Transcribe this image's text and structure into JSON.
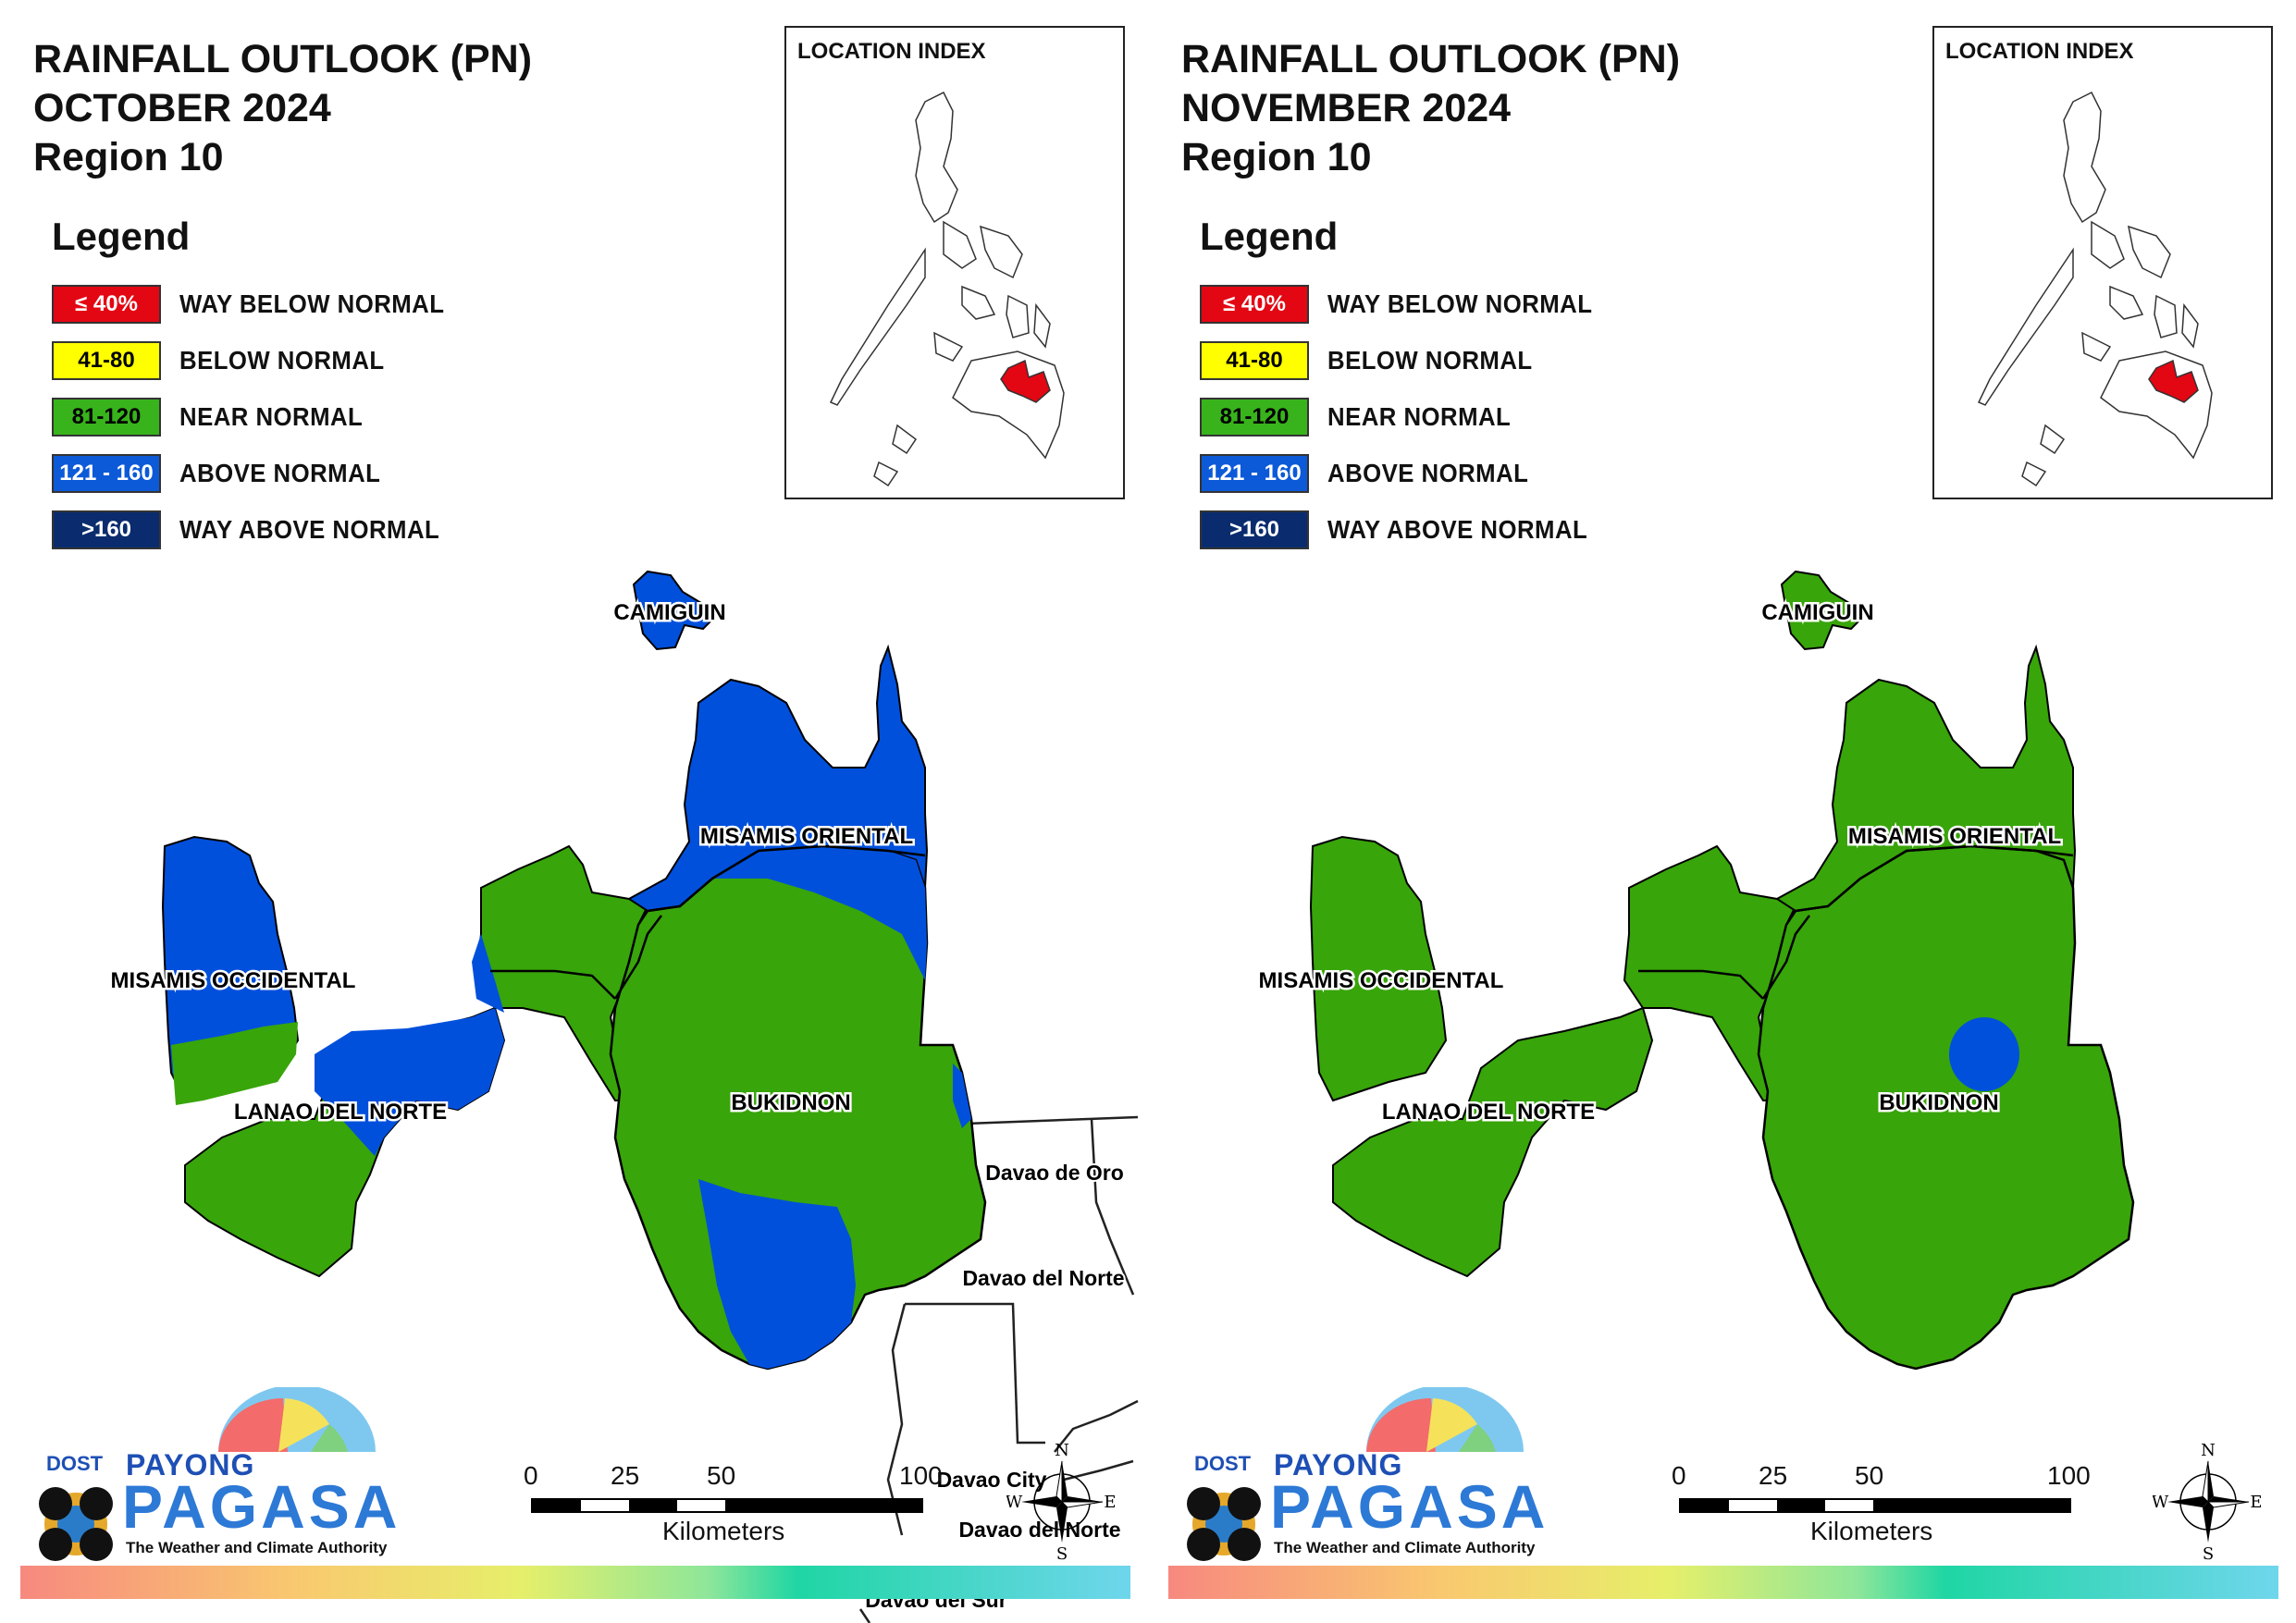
{
  "panels": [
    {
      "title_line1": "RAINFALL OUTLOOK (PN)",
      "title_line2": "OCTOBER 2024",
      "title_line3": "Region 10",
      "location_index_title": "LOCATION INDEX",
      "provinces": {
        "camiguin": "CAMIGUIN",
        "misamis_oriental": "MISAMIS ORIENTAL",
        "misamis_occidental": "MISAMIS OCCIDENTAL",
        "lanao_del_norte": "LANAO DEL NORTE",
        "bukidnon": "BUKIDNON"
      },
      "neighbors": {
        "davao_de_oro": "Davao de Oro",
        "davao_del_norte": "Davao del Norte",
        "davao_city": "Davao City",
        "davao_del_norte_2": "Davao del Norte",
        "davao_del_sur": "Davao del Sur"
      },
      "province_categories": {
        "camiguin": "ABOVE NORMAL",
        "misamis_oriental": "ABOVE NORMAL / NEAR NORMAL",
        "misamis_occidental": "ABOVE NORMAL / NEAR NORMAL",
        "lanao_del_norte": "NEAR NORMAL / ABOVE NORMAL",
        "bukidnon": "NEAR NORMAL / ABOVE NORMAL"
      }
    },
    {
      "title_line1": "RAINFALL OUTLOOK (PN)",
      "title_line2": "NOVEMBER 2024",
      "title_line3": "Region 10",
      "location_index_title": "LOCATION INDEX",
      "provinces": {
        "camiguin": "CAMIGUIN",
        "misamis_oriental": "MISAMIS ORIENTAL",
        "misamis_occidental": "MISAMIS OCCIDENTAL",
        "lanao_del_norte": "LANAO DEL NORTE",
        "bukidnon": "BUKIDNON"
      },
      "province_categories": {
        "camiguin": "NEAR NORMAL",
        "misamis_oriental": "NEAR NORMAL",
        "misamis_occidental": "NEAR NORMAL",
        "lanao_del_norte": "NEAR NORMAL",
        "bukidnon": "NEAR NORMAL / ABOVE NORMAL"
      }
    }
  ],
  "legend": {
    "title": "Legend",
    "items": [
      {
        "range": "≤ 40%",
        "label": "WAY BELOW NORMAL",
        "color": "#e30613",
        "text_color": "#ffffff"
      },
      {
        "range": "41-80",
        "label": "BELOW NORMAL",
        "color": "#ffff00",
        "text_color": "#000000"
      },
      {
        "range": "81-120",
        "label": "NEAR NORMAL",
        "color": "#38b31c",
        "text_color": "#000000"
      },
      {
        "range": "121 - 160",
        "label": "ABOVE NORMAL",
        "color": "#0c5ad8",
        "text_color": "#ffffff"
      },
      {
        "range": ">160",
        "label": "WAY ABOVE NORMAL",
        "color": "#0a2c6e",
        "text_color": "#ffffff"
      }
    ]
  },
  "scale": {
    "ticks": [
      "0",
      "25",
      "50",
      "100"
    ],
    "unit": "Kilometers"
  },
  "compass": {
    "n": "N",
    "s": "S",
    "e": "E",
    "w": "W"
  },
  "logo": {
    "dost": "DOST",
    "payong": "PAYONG",
    "pagasa": "PAGASA",
    "tagline": "The Weather and Climate Authority"
  },
  "colors": {
    "near_normal": "#38a50a",
    "above_normal": "#0050dc",
    "highlight_region": "#e30613"
  }
}
